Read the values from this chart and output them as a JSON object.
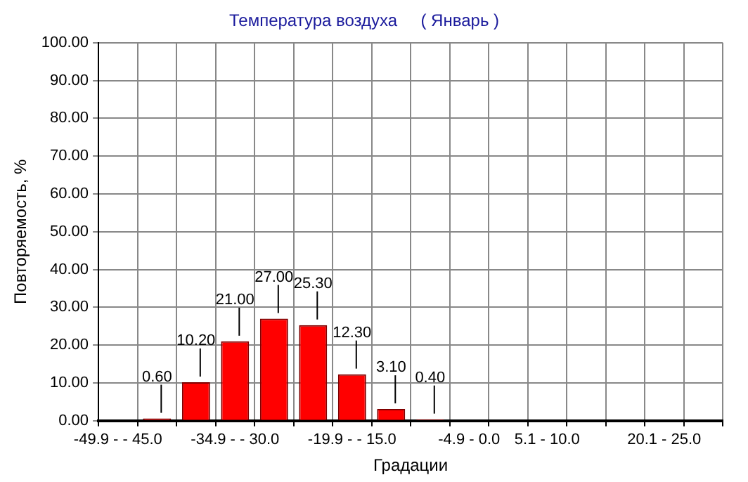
{
  "chart_data": {
    "type": "bar",
    "title": "Температура воздуха     ( Январь )",
    "xlabel": "Градации",
    "ylabel": "Повторяемость, %",
    "categories": [
      "-49.9 - - 45.0",
      null,
      null,
      "-34.9 - - 30.0",
      null,
      null,
      "-19.9 - - 15.0",
      null,
      null,
      "-4.9 - 0.0",
      null,
      "5.1 - 10.0",
      null,
      null,
      "20.1 - 25.0",
      null
    ],
    "values": [
      0,
      0.6,
      10.2,
      21,
      27,
      25.3,
      12.3,
      3.1,
      0.4,
      0,
      0,
      0,
      0,
      0,
      0,
      0
    ],
    "value_labels": [
      null,
      "0.60",
      "10.20",
      "21.00",
      "27.00",
      "25.30",
      "12.30",
      "3.10",
      "0.40",
      null,
      null,
      null,
      null,
      null,
      null,
      null
    ],
    "color": "#ff0000",
    "ylim": [
      0,
      100
    ],
    "yticks": [
      {
        "value": 0,
        "label": "0.00"
      },
      {
        "value": 10,
        "label": "10.00"
      },
      {
        "value": 20,
        "label": "20.00"
      },
      {
        "value": 30,
        "label": "30.00"
      },
      {
        "value": 40,
        "label": "40.00"
      },
      {
        "value": 50,
        "label": "50.00"
      },
      {
        "value": 60,
        "label": "60.00"
      },
      {
        "value": 70,
        "label": "70.00"
      },
      {
        "value": 80,
        "label": "80.00"
      },
      {
        "value": 90,
        "label": "90.00"
      },
      {
        "value": 100,
        "label": "100.00"
      }
    ],
    "grid": true,
    "legend": false
  }
}
